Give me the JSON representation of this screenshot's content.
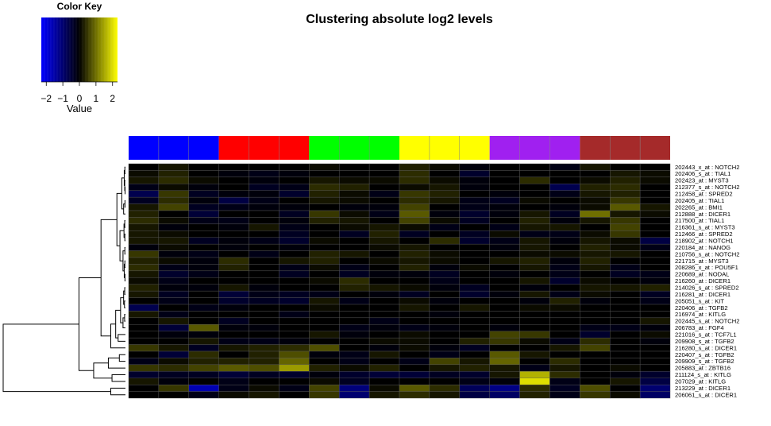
{
  "chart_data": {
    "type": "heatmap",
    "title": "Clustering absolute log2 levels",
    "color_key": {
      "title": "Color Key",
      "xlabel": "Value",
      "ticks": [
        "−2",
        "−1",
        "0",
        "1",
        "2"
      ],
      "tick_values": [
        -2,
        -1,
        0,
        1,
        2
      ],
      "range": [
        -2.3,
        2.3
      ],
      "low_color": "#0000ff",
      "mid_color": "#000000",
      "high_color": "#ffff00"
    },
    "column_groups": [
      {
        "color": "#0000ff",
        "columns": 3
      },
      {
        "color": "#ff0000",
        "columns": 3
      },
      {
        "color": "#00ff00",
        "columns": 3
      },
      {
        "color": "#ffff00",
        "columns": 3
      },
      {
        "color": "#a020f0",
        "columns": 3
      },
      {
        "color": "#a52a2a",
        "columns": 3
      }
    ],
    "rows": [
      "202443_x_at : NOTCH2",
      "202406_s_at : TIAL1",
      "202423_at : MYST3",
      "212377_s_at : NOTCH2",
      "212458_at : SPRED2",
      "202405_at : TIAL1",
      "202265_at : BMI1",
      "212888_at : DICER1",
      "217500_at : TIAL1",
      "216361_s_at : MYST3",
      "212466_at : SPRED2",
      "218902_at : NOTCH1",
      "220184_at : NANOG",
      "210756_s_at : NOTCH2",
      "221715_at : MYST3",
      "208286_x_at : POU5F1",
      "220689_at : NODAL",
      "216260_at : DICER1",
      "214026_s_at : SPRED2",
      "216281_at : DICER1",
      "205051_s_at : KIT",
      "220406_at : TGFB2",
      "216974_at : KITLG",
      "202445_s_at : NOTCH2",
      "206783_at : FGF4",
      "221016_s_at : TCF7L1",
      "209908_s_at : TGFB2",
      "216280_s_at : DICER1",
      "220407_s_at : TGFB2",
      "209909_s_at : TGFB2",
      "205883_at : ZBTB16",
      "211124_s_at : KITLG",
      "207029_at : KITLG",
      "213229_at : DICER1",
      "206061_s_at : DICER1"
    ],
    "values": [
      [
        0.0,
        0.2,
        0.0,
        0.0,
        0.0,
        0.0,
        0.1,
        0.0,
        0.0,
        0.3,
        0.1,
        -0.1,
        0.0,
        0.0,
        -0.2,
        0.2,
        0.0,
        0.0
      ],
      [
        0.1,
        0.3,
        0.0,
        -0.1,
        -0.2,
        -0.1,
        0.0,
        0.0,
        0.0,
        0.4,
        0.0,
        -0.4,
        0.0,
        0.0,
        0.0,
        0.0,
        0.2,
        0.1
      ],
      [
        0.2,
        0.4,
        0.1,
        0.0,
        -0.1,
        0.0,
        0.2,
        0.1,
        0.1,
        0.4,
        0.1,
        -0.1,
        0.0,
        0.4,
        0.0,
        0.1,
        0.3,
        0.1
      ],
      [
        -0.2,
        0.1,
        -0.1,
        0.0,
        -0.3,
        -0.2,
        0.4,
        0.3,
        0.0,
        0.1,
        0.2,
        -0.1,
        0.0,
        0.0,
        -0.7,
        0.3,
        0.4,
        0.0
      ],
      [
        -0.7,
        0.5,
        -0.3,
        -0.1,
        -0.1,
        -0.4,
        0.3,
        0.1,
        -0.2,
        0.5,
        0.3,
        0.0,
        -0.1,
        0.0,
        -0.2,
        0.2,
        0.3,
        0.0
      ],
      [
        -0.3,
        0.4,
        -0.1,
        -0.6,
        -0.2,
        0.0,
        0.2,
        0.1,
        0.0,
        0.4,
        0.2,
        -0.2,
        -0.3,
        0.1,
        0.0,
        0.1,
        0.5,
        0.0
      ],
      [
        0.2,
        0.6,
        -0.3,
        -0.2,
        -0.1,
        -0.1,
        0.0,
        -0.1,
        -0.1,
        0.6,
        0.0,
        -0.2,
        -0.1,
        0.0,
        -0.1,
        0.1,
        0.8,
        0.2
      ],
      [
        0.3,
        0.0,
        -0.5,
        0.0,
        0.0,
        -0.3,
        0.5,
        0.1,
        -0.2,
        0.8,
        -0.1,
        -0.4,
        -0.1,
        0.2,
        -0.3,
        1.0,
        0.2,
        0.1
      ],
      [
        0.4,
        0.1,
        -0.2,
        -0.2,
        0.0,
        -0.1,
        0.3,
        0.2,
        0.0,
        0.6,
        0.1,
        -0.3,
        0.0,
        0.3,
        -0.1,
        0.2,
        0.5,
        0.0
      ],
      [
        0.2,
        -0.1,
        0.0,
        -0.1,
        0.2,
        -0.2,
        0.0,
        0.1,
        0.2,
        0.1,
        -0.2,
        0.0,
        -0.2,
        0.2,
        0.2,
        0.0,
        0.6,
        0.0
      ],
      [
        0.2,
        0.1,
        0.0,
        0.0,
        0.0,
        -0.3,
        0.0,
        -0.3,
        0.3,
        -0.3,
        0.0,
        -0.3,
        0.1,
        -0.2,
        -0.2,
        0.1,
        0.5,
        0.0
      ],
      [
        0.2,
        0.2,
        -0.3,
        -0.1,
        -0.2,
        -0.4,
        0.1,
        0.0,
        0.2,
        0.0,
        0.4,
        -0.4,
        -0.2,
        0.2,
        -0.1,
        0.2,
        0.1,
        -0.6
      ],
      [
        -0.1,
        0.1,
        0.0,
        -0.1,
        0.0,
        -0.1,
        0.0,
        0.0,
        0.1,
        0.2,
        0.0,
        0.0,
        -0.1,
        0.2,
        0.0,
        0.3,
        0.1,
        -0.2
      ],
      [
        0.5,
        -0.1,
        -0.2,
        0.0,
        -0.2,
        0.0,
        0.3,
        0.2,
        0.0,
        0.3,
        0.1,
        0.0,
        0.0,
        0.1,
        0.1,
        0.2,
        0.2,
        0.0
      ],
      [
        0.3,
        0.1,
        -0.1,
        0.4,
        0.0,
        0.2,
        0.3,
        0.0,
        0.1,
        0.2,
        0.1,
        0.0,
        0.2,
        0.3,
        -0.1,
        0.3,
        0.0,
        0.0
      ],
      [
        0.4,
        -0.2,
        -0.1,
        0.3,
        0.0,
        -0.2,
        0.1,
        -0.2,
        0.0,
        0.3,
        -0.1,
        0.1,
        0.0,
        0.2,
        -0.2,
        0.2,
        -0.2,
        0.0
      ],
      [
        0.2,
        -0.4,
        -0.2,
        0.0,
        0.0,
        -0.3,
        0.0,
        -0.3,
        -0.1,
        -0.1,
        -0.3,
        0.0,
        -0.1,
        0.0,
        -0.2,
        0.0,
        -0.3,
        -0.2
      ],
      [
        0.1,
        -0.2,
        0.0,
        0.0,
        0.0,
        0.0,
        0.1,
        0.4,
        0.0,
        0.0,
        -0.2,
        0.0,
        0.0,
        0.2,
        -0.4,
        0.1,
        0.0,
        -0.1
      ],
      [
        0.3,
        -0.1,
        -0.1,
        0.2,
        -0.1,
        0.0,
        0.0,
        0.3,
        0.2,
        0.1,
        -0.1,
        -0.3,
        0.0,
        -0.1,
        0.0,
        0.2,
        0.2,
        0.3
      ],
      [
        0.2,
        -0.3,
        0.0,
        -0.5,
        -0.2,
        -0.3,
        -0.2,
        0.0,
        -0.1,
        -0.3,
        0.0,
        -0.4,
        -0.1,
        0.2,
        -0.2,
        0.1,
        0.0,
        -0.3
      ],
      [
        0.0,
        -0.2,
        0.0,
        -0.4,
        -0.3,
        -0.4,
        0.2,
        -0.2,
        0.0,
        0.1,
        -0.1,
        0.0,
        0.0,
        -0.1,
        0.3,
        -0.1,
        0.0,
        -0.2
      ],
      [
        -0.7,
        0.0,
        -0.2,
        -0.1,
        0.0,
        0.0,
        0.1,
        0.0,
        0.0,
        0.2,
        0.0,
        0.2,
        0.0,
        0.1,
        0.1,
        0.0,
        0.0,
        0.0
      ],
      [
        0.2,
        -0.2,
        0.0,
        0.0,
        0.0,
        -0.2,
        0.0,
        0.0,
        0.0,
        0.0,
        -0.1,
        0.0,
        0.0,
        0.0,
        0.0,
        0.0,
        0.0,
        0.0
      ],
      [
        0.0,
        0.2,
        0.0,
        -0.3,
        0.0,
        0.0,
        0.0,
        0.0,
        -0.2,
        0.0,
        0.0,
        0.0,
        0.0,
        0.0,
        0.0,
        0.0,
        0.0,
        0.2
      ],
      [
        0.0,
        -0.5,
        0.8,
        -0.1,
        -0.1,
        0.0,
        0.0,
        -0.2,
        -0.1,
        -0.2,
        -0.1,
        0.0,
        -0.1,
        0.0,
        0.0,
        -0.2,
        -0.2,
        -0.1
      ],
      [
        0.0,
        -0.1,
        -0.1,
        0.0,
        0.0,
        0.0,
        0.2,
        -0.1,
        0.0,
        0.1,
        0.0,
        0.0,
        0.6,
        0.5,
        0.0,
        -0.4,
        0.0,
        0.1
      ],
      [
        0.0,
        0.0,
        0.2,
        -0.2,
        -0.2,
        -0.1,
        0.0,
        0.0,
        0.1,
        0.1,
        0.0,
        0.3,
        0.5,
        0.1,
        -0.2,
        0.4,
        0.0,
        -0.1
      ],
      [
        0.5,
        0.2,
        -0.3,
        0.2,
        0.3,
        0.4,
        0.7,
        0.0,
        -0.1,
        0.1,
        -0.1,
        -0.3,
        0.0,
        0.0,
        0.2,
        0.6,
        0.0,
        0.0
      ],
      [
        0.0,
        -0.5,
        0.4,
        0.0,
        0.3,
        0.7,
        -0.1,
        -0.2,
        0.2,
        0.0,
        -0.2,
        0.0,
        0.8,
        0.2,
        0.0,
        0.0,
        0.0,
        0.0
      ],
      [
        -0.2,
        0.1,
        0.3,
        0.3,
        0.3,
        0.9,
        0.0,
        -0.2,
        0.0,
        -0.2,
        0.6,
        0.2,
        0.9,
        0.0,
        0.4,
        0.0,
        0.0,
        0.0
      ],
      [
        0.5,
        0.4,
        0.6,
        0.8,
        0.7,
        1.4,
        0.3,
        0.1,
        0.3,
        0.0,
        0.2,
        0.3,
        0.2,
        -0.2,
        0.2,
        0.0,
        0.1,
        0.0
      ],
      [
        -0.4,
        -0.3,
        -0.3,
        -0.5,
        -0.3,
        -0.4,
        -0.1,
        -0.4,
        -0.5,
        -0.5,
        -0.3,
        -0.4,
        0.2,
        1.6,
        0.4,
        0.0,
        -0.1,
        -0.4
      ],
      [
        0.2,
        -0.1,
        0.0,
        -0.2,
        0.0,
        0.0,
        0.1,
        -0.3,
        0.0,
        0.0,
        0.0,
        -0.2,
        -0.1,
        2.0,
        -0.2,
        0.0,
        0.2,
        -0.6
      ],
      [
        0.0,
        0.5,
        -1.6,
        -0.2,
        0.1,
        -0.2,
        0.6,
        -1.1,
        0.1,
        0.8,
        0.4,
        -0.8,
        -1.2,
        0.4,
        -0.3,
        0.7,
        0.0,
        -1.0
      ],
      [
        0.0,
        0.0,
        -0.2,
        0.1,
        0.2,
        0.0,
        0.5,
        -1.0,
        0.2,
        0.4,
        0.2,
        -0.6,
        -0.9,
        0.3,
        -0.2,
        0.5,
        0.1,
        -0.9
      ]
    ]
  }
}
